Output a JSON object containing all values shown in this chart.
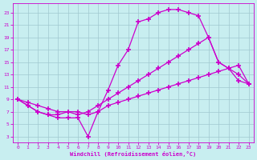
{
  "bg_color": "#c8eef0",
  "grid_color": "#a0c8d0",
  "line_color": "#cc00cc",
  "marker": "+",
  "markersize": 4,
  "markeredgewidth": 1.2,
  "linewidth": 0.9,
  "xlabel": "Windchill (Refroidissement éolien,°C)",
  "xlim": [
    -0.5,
    23.5
  ],
  "ylim": [
    2,
    24.5
  ],
  "xticks": [
    0,
    1,
    2,
    3,
    4,
    5,
    6,
    7,
    8,
    9,
    10,
    11,
    12,
    13,
    14,
    15,
    16,
    17,
    18,
    19,
    20,
    21,
    22,
    23
  ],
  "yticks": [
    3,
    5,
    7,
    9,
    11,
    13,
    15,
    17,
    19,
    21,
    23
  ],
  "curve_bottom_x": [
    0,
    1,
    2,
    3,
    4,
    5,
    6,
    7,
    8,
    9,
    10,
    11,
    12,
    13,
    14,
    15,
    16,
    17,
    18,
    19,
    20,
    21,
    22,
    23
  ],
  "curve_bottom_y": [
    9,
    8,
    7,
    6.5,
    6.5,
    7,
    7,
    6.5,
    7,
    8,
    8.5,
    9,
    9.5,
    10,
    10.5,
    11,
    11.5,
    12,
    12.5,
    13,
    13.5,
    14,
    14.5,
    11.5
  ],
  "curve_mid_x": [
    0,
    1,
    2,
    3,
    4,
    5,
    6,
    7,
    8,
    9,
    10,
    11,
    12,
    13,
    14,
    15,
    16,
    17,
    18,
    19,
    20,
    21,
    22,
    23
  ],
  "curve_mid_y": [
    9,
    8.5,
    8,
    7.5,
    7,
    7,
    6.5,
    7,
    8,
    9,
    10,
    11,
    12,
    13,
    14,
    15,
    16,
    17,
    18,
    19,
    15,
    14,
    13,
    11.5
  ],
  "curve_top_x": [
    0,
    1,
    2,
    3,
    4,
    5,
    6,
    7,
    8,
    9,
    10,
    11,
    12,
    13,
    14,
    15,
    16,
    17,
    18,
    19,
    20,
    21,
    22,
    23
  ],
  "curve_top_y": [
    9,
    8,
    7,
    6.5,
    6,
    6,
    6,
    3,
    7,
    10.5,
    14.5,
    17,
    21.5,
    22,
    23,
    23.5,
    23.5,
    23,
    22.5,
    19,
    15,
    14,
    12,
    11.5
  ]
}
